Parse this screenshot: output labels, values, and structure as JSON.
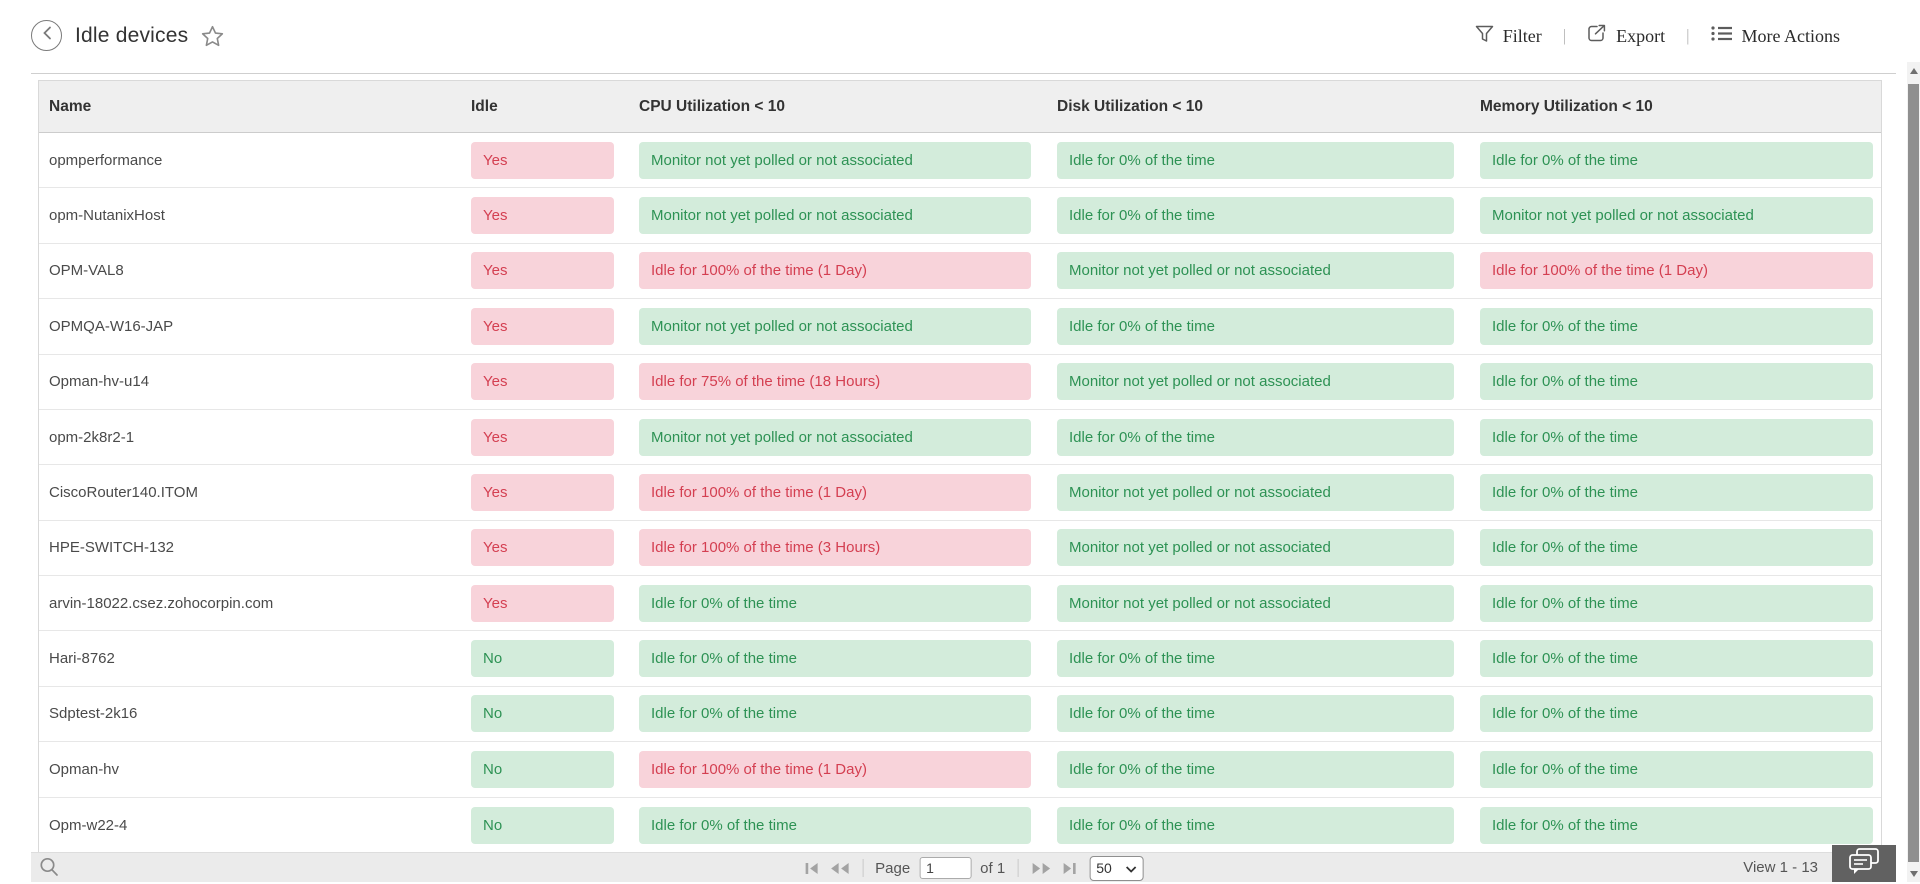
{
  "header": {
    "title": "Idle devices",
    "toolbar": {
      "filter": "Filter",
      "export": "Export",
      "more_actions": "More Actions",
      "separator": "|"
    }
  },
  "icons": {
    "back": "chevron-left-in-circle",
    "favorite": "star-outline",
    "filter": "funnel",
    "export": "box-arrow-up-right",
    "more_actions": "bulleted-list",
    "search": "magnifier",
    "first_page": "bar-left-triangle",
    "prev_page": "double-left-triangle",
    "next_page": "double-right-triangle",
    "last_page": "right-triangle-bar",
    "page_size_chevron": "chevron-down",
    "feedback": "chat-bubbles",
    "scroll_up": "triangle-up",
    "scroll_down": "triangle-down"
  },
  "colors": {
    "badge_green_bg": "#d3ecdb",
    "badge_green_text": "#2d9254",
    "badge_red_bg": "#f8d3da",
    "badge_red_text": "#d43f51",
    "header_row_bg": "#efefef",
    "footer_bar_bg": "#ebebeb",
    "feedback_btn_bg": "#616161"
  },
  "table": {
    "columns": [
      "Name",
      "Idle",
      "CPU Utilization < 10",
      "Disk Utilization < 10",
      "Memory Utilization < 10"
    ],
    "rows": [
      {
        "name": "opmperformance",
        "idle": "Yes",
        "idle_tone": "red",
        "cpu": "Monitor not yet polled or not associated",
        "cpu_tone": "green",
        "disk": "Idle for 0% of the time",
        "disk_tone": "green",
        "mem": "Idle for 0% of the time",
        "mem_tone": "green"
      },
      {
        "name": "opm-NutanixHost",
        "idle": "Yes",
        "idle_tone": "red",
        "cpu": "Monitor not yet polled or not associated",
        "cpu_tone": "green",
        "disk": "Idle for 0% of the time",
        "disk_tone": "green",
        "mem": "Monitor not yet polled or not associated",
        "mem_tone": "green"
      },
      {
        "name": "OPM-VAL8",
        "idle": "Yes",
        "idle_tone": "red",
        "cpu": "Idle for 100% of the time (1 Day)",
        "cpu_tone": "red",
        "disk": "Monitor not yet polled or not associated",
        "disk_tone": "green",
        "mem": "Idle for 100% of the time (1 Day)",
        "mem_tone": "red"
      },
      {
        "name": "OPMQA-W16-JAP",
        "idle": "Yes",
        "idle_tone": "red",
        "cpu": "Monitor not yet polled or not associated",
        "cpu_tone": "green",
        "disk": "Idle for 0% of the time",
        "disk_tone": "green",
        "mem": "Idle for 0% of the time",
        "mem_tone": "green"
      },
      {
        "name": "Opman-hv-u14",
        "idle": "Yes",
        "idle_tone": "red",
        "cpu": "Idle for 75% of the time (18 Hours)",
        "cpu_tone": "red",
        "disk": "Monitor not yet polled or not associated",
        "disk_tone": "green",
        "mem": "Idle for 0% of the time",
        "mem_tone": "green"
      },
      {
        "name": "opm-2k8r2-1",
        "idle": "Yes",
        "idle_tone": "red",
        "cpu": "Monitor not yet polled or not associated",
        "cpu_tone": "green",
        "disk": "Idle for 0% of the time",
        "disk_tone": "green",
        "mem": "Idle for 0% of the time",
        "mem_tone": "green"
      },
      {
        "name": "CiscoRouter140.ITOM",
        "idle": "Yes",
        "idle_tone": "red",
        "cpu": "Idle for 100% of the time (1 Day)",
        "cpu_tone": "red",
        "disk": "Monitor not yet polled or not associated",
        "disk_tone": "green",
        "mem": "Idle for 0% of the time",
        "mem_tone": "green"
      },
      {
        "name": "HPE-SWITCH-132",
        "idle": "Yes",
        "idle_tone": "red",
        "cpu": "Idle for 100% of the time (3 Hours)",
        "cpu_tone": "red",
        "disk": "Monitor not yet polled or not associated",
        "disk_tone": "green",
        "mem": "Idle for 0% of the time",
        "mem_tone": "green"
      },
      {
        "name": "arvin-18022.csez.zohocorpin.com",
        "idle": "Yes",
        "idle_tone": "red",
        "cpu": "Idle for 0% of the time",
        "cpu_tone": "green",
        "disk": "Monitor not yet polled or not associated",
        "disk_tone": "green",
        "mem": "Idle for 0% of the time",
        "mem_tone": "green"
      },
      {
        "name": "Hari-8762",
        "idle": "No",
        "idle_tone": "green",
        "cpu": "Idle for 0% of the time",
        "cpu_tone": "green",
        "disk": "Idle for 0% of the time",
        "disk_tone": "green",
        "mem": "Idle for 0% of the time",
        "mem_tone": "green"
      },
      {
        "name": "Sdptest-2k16",
        "idle": "No",
        "idle_tone": "green",
        "cpu": "Idle for 0% of the time",
        "cpu_tone": "green",
        "disk": "Idle for 0% of the time",
        "disk_tone": "green",
        "mem": "Idle for 0% of the time",
        "mem_tone": "green"
      },
      {
        "name": "Opman-hv",
        "idle": "No",
        "idle_tone": "green",
        "cpu": "Idle for 100% of the time (1 Day)",
        "cpu_tone": "red",
        "disk": "Idle for 0% of the time",
        "disk_tone": "green",
        "mem": "Idle for 0% of the time",
        "mem_tone": "green"
      },
      {
        "name": "Opm-w22-4",
        "idle": "No",
        "idle_tone": "green",
        "cpu": "Idle for 0% of the time",
        "cpu_tone": "green",
        "disk": "Idle for 0% of the time",
        "disk_tone": "green",
        "mem": "Idle for 0% of the time",
        "mem_tone": "green"
      }
    ]
  },
  "footer": {
    "page_label": "Page",
    "page_value": "1",
    "of_label": "of 1",
    "page_size": "50",
    "view_label": "View 1 - 13"
  }
}
